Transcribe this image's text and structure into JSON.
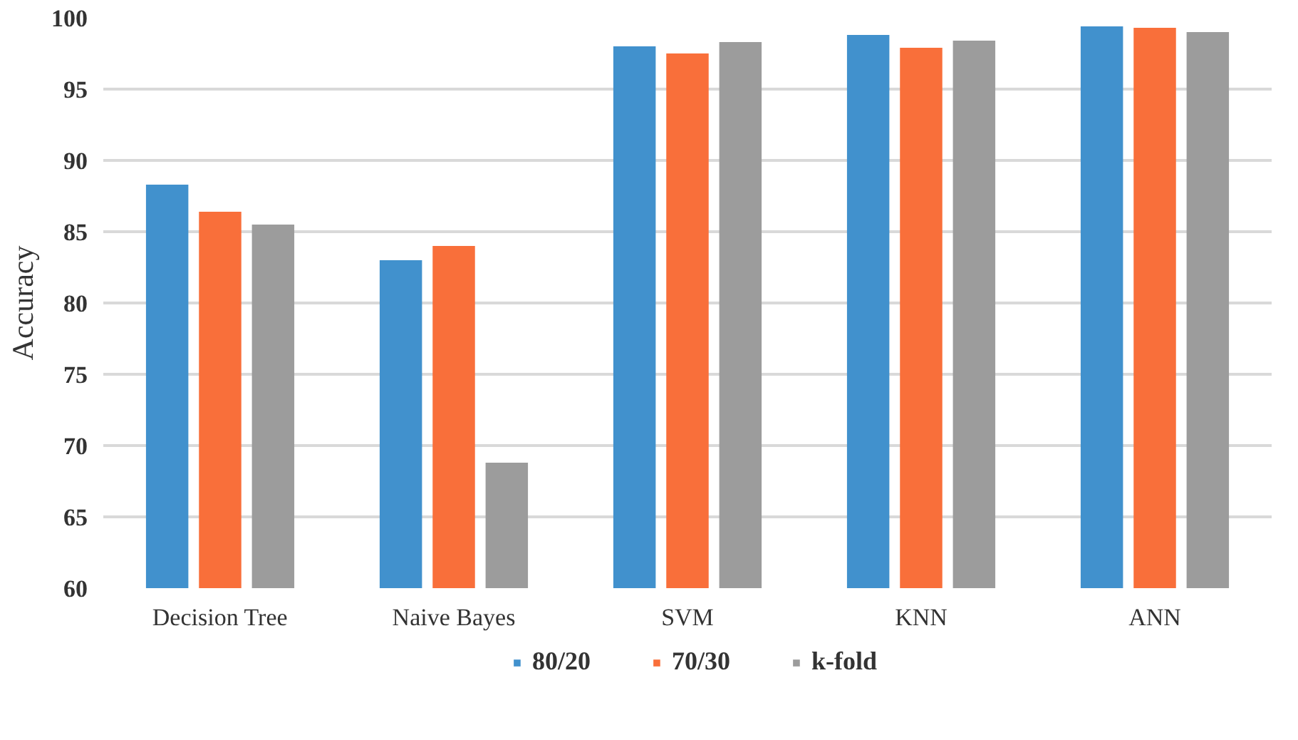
{
  "chart_data": {
    "type": "bar",
    "ylabel": "Accuracy",
    "categories": [
      "Decision Tree",
      "Naive Bayes",
      "SVM",
      "KNN",
      "ANN"
    ],
    "series": [
      {
        "name": "80/20",
        "color": "#4191cd",
        "values": [
          88.3,
          83.0,
          98.0,
          98.8,
          99.4
        ]
      },
      {
        "name": "70/30",
        "color": "#f96f3a",
        "values": [
          86.4,
          84.0,
          97.5,
          97.9,
          99.3
        ]
      },
      {
        "name": "k-fold",
        "color": "#9c9c9c",
        "values": [
          85.5,
          68.8,
          98.3,
          98.4,
          99.0
        ]
      }
    ],
    "ylim": [
      60,
      100
    ],
    "yticks": [
      60,
      65,
      70,
      75,
      80,
      85,
      90,
      95,
      100
    ],
    "grid": "y",
    "legend": "bottom"
  }
}
